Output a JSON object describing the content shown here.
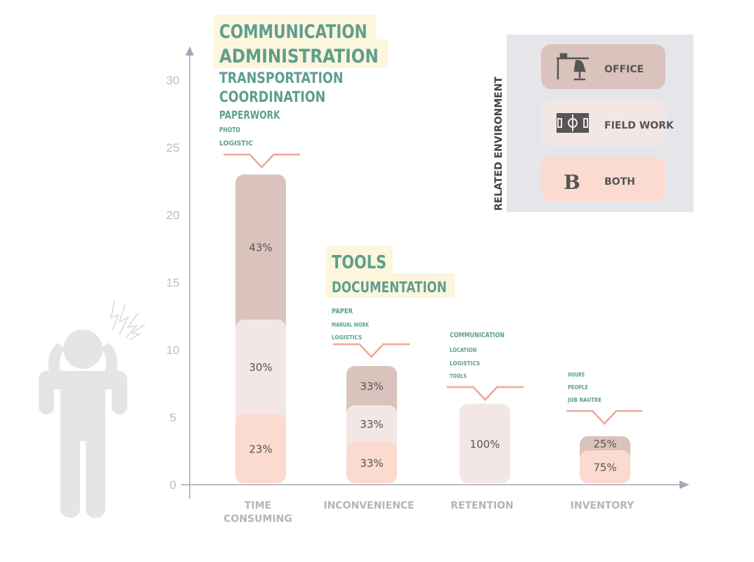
{
  "chart_data": {
    "type": "bar",
    "stacked": true,
    "ylim": [
      0,
      30
    ],
    "yticks": [
      0,
      5,
      10,
      15,
      20,
      25,
      30
    ],
    "categories": [
      {
        "key": "time",
        "label": [
          "TIME",
          "CONSUMING"
        ],
        "total": 23,
        "segments": [
          {
            "env": "both",
            "label": "23%"
          },
          {
            "env": "field",
            "label": "30%"
          },
          {
            "env": "office",
            "label": "43%"
          }
        ],
        "keywords": [
          "COMMUNICATION",
          "ADMINISTRATION",
          "TRANSPORTATION",
          "COORDINATION",
          "PAPERWORK",
          "PHOTO",
          "LOGISTIC"
        ]
      },
      {
        "key": "inconvenience",
        "label": [
          "INCONVENIENCE"
        ],
        "total": 8.8,
        "segments": [
          {
            "env": "both",
            "label": "33%"
          },
          {
            "env": "field",
            "label": "33%"
          },
          {
            "env": "office",
            "label": "33%"
          }
        ],
        "keywords": [
          "TOOLS",
          "DOCUMENTATION",
          "PAPER",
          "MANUAL WORK",
          "LOGISTICS"
        ]
      },
      {
        "key": "retention",
        "label": [
          "RETENTION"
        ],
        "total": 6,
        "segments": [
          {
            "env": "field",
            "label": "100%"
          }
        ],
        "keywords": [
          "COMMUNICATION",
          "LOCATION",
          "LOGISTICS",
          "TOOLS"
        ]
      },
      {
        "key": "inventory",
        "label": [
          "INVENTORY"
        ],
        "total": 3.6,
        "segments": [
          {
            "env": "both",
            "label": "75%"
          },
          {
            "env": "office",
            "label": "25%"
          }
        ],
        "keywords": [
          "HOURS",
          "PEOPLE",
          "JOB NAUTRE"
        ]
      }
    ],
    "legend": {
      "title": "RELATED ENVIRONMENT",
      "placement": "top-right",
      "items": [
        {
          "env": "office",
          "label": "OFFICE",
          "icon": "desk-chair-icon"
        },
        {
          "env": "field",
          "label": "FIELD WORK",
          "icon": "soccer-field-icon"
        },
        {
          "env": "both",
          "label": "BOTH",
          "icon": "letter-b-icon"
        }
      ]
    },
    "colors": {
      "office": "#dbc3bd",
      "field": "#f2e7e5",
      "both": "#fbdad0",
      "axis": "#a7a7b8",
      "keyword": "#5f9e8f",
      "keyword_highlight": "#fbf6dc",
      "bracket": "#f0a597",
      "legend_bg": "#e6e6ea",
      "figure": "#e5e5e5"
    }
  }
}
